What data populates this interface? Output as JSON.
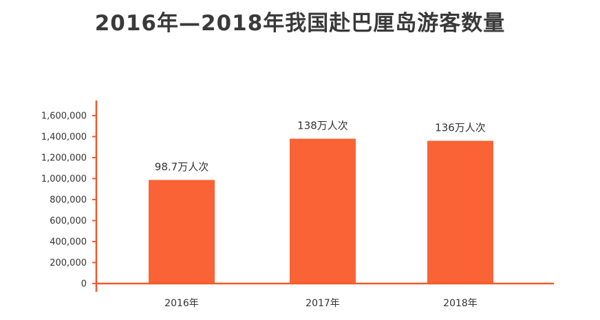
{
  "chart_data": {
    "type": "bar",
    "title": "2016年—2018年我国赴巴厘岛游客数量",
    "categories": [
      "2016年",
      "2017年",
      "2018年"
    ],
    "values": [
      987000,
      1380000,
      1360000
    ],
    "data_labels": [
      "98.7万人次",
      "138万人次",
      "136万人次"
    ],
    "ylim": [
      0,
      1600000
    ],
    "yticks": [
      0,
      200000,
      400000,
      600000,
      800000,
      1000000,
      1200000,
      1400000,
      1600000
    ],
    "ytick_labels": [
      "0",
      "200,000",
      "400,000",
      "600,000",
      "800,000",
      "1,000,000",
      "1,200,000",
      "1,400,000",
      "1,600,000"
    ],
    "grid": false,
    "legend": false,
    "colors": {
      "bar": "#f96335",
      "axis": "#f05a28",
      "text": "#333333",
      "title": "#3a3a3a"
    }
  }
}
